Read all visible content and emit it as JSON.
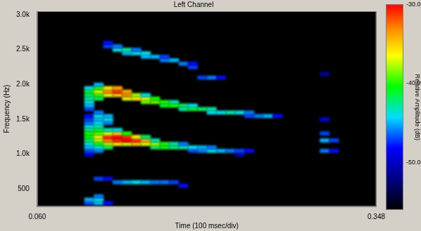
{
  "chart_data": {
    "type": "heatmap",
    "title": "Left Channel",
    "x_label": "Time (100 msec/div)",
    "y_label": "Frequency (Hz)",
    "xlim": [
      0.06,
      0.348
    ],
    "xticks": [
      {
        "value": 0.06,
        "label": "0.060"
      },
      {
        "value": 0.348,
        "label": "0.348"
      }
    ],
    "ylim": [
      250,
      3050
    ],
    "yticks": [
      500,
      {
        "value": 1000,
        "label": "1.0k"
      },
      {
        "value": 1500,
        "label": "1.5k"
      },
      {
        "value": 2000,
        "label": "2.0k"
      },
      {
        "value": 2500,
        "label": "2.5k"
      },
      {
        "value": 3000,
        "label": "3.0k"
      }
    ],
    "grid": false,
    "colorbar": {
      "label": "Relative Amplitude (dB)",
      "range": [
        -56,
        -30
      ],
      "ticks": [
        {
          "value": -50,
          "label": "-50.0"
        },
        {
          "value": -40,
          "label": "-40.0"
        },
        {
          "value": -30,
          "label": "-30.0"
        }
      ]
    },
    "cells": [
      [
        0.104,
        1000,
        -49
      ],
      [
        0.104,
        1050,
        -47
      ],
      [
        0.104,
        1100,
        -45
      ],
      [
        0.104,
        1150,
        -44
      ],
      [
        0.104,
        1200,
        -42
      ],
      [
        0.104,
        1250,
        -41
      ],
      [
        0.104,
        1300,
        -40
      ],
      [
        0.104,
        1350,
        -42
      ],
      [
        0.104,
        1400,
        -44
      ],
      [
        0.104,
        1450,
        -46
      ],
      [
        0.104,
        1500,
        -47
      ],
      [
        0.104,
        1550,
        -48
      ],
      [
        0.112,
        1050,
        -46
      ],
      [
        0.112,
        1100,
        -44
      ],
      [
        0.112,
        1150,
        -41
      ],
      [
        0.112,
        1200,
        -38
      ],
      [
        0.112,
        1250,
        -36
      ],
      [
        0.112,
        1300,
        -39
      ],
      [
        0.112,
        1350,
        -41
      ],
      [
        0.112,
        1400,
        -43
      ],
      [
        0.112,
        1450,
        -44
      ],
      [
        0.112,
        1500,
        -45
      ],
      [
        0.112,
        1550,
        -44
      ],
      [
        0.112,
        1600,
        -46
      ],
      [
        0.12,
        1100,
        -42
      ],
      [
        0.12,
        1150,
        -38
      ],
      [
        0.12,
        1200,
        -33
      ],
      [
        0.12,
        1250,
        -31
      ],
      [
        0.12,
        1300,
        -37
      ],
      [
        0.12,
        1350,
        -43
      ],
      [
        0.12,
        1450,
        -46
      ],
      [
        0.12,
        1500,
        -44
      ],
      [
        0.12,
        1550,
        -45
      ],
      [
        0.128,
        1150,
        -36
      ],
      [
        0.128,
        1200,
        -31
      ],
      [
        0.128,
        1250,
        -30
      ],
      [
        0.128,
        1300,
        -35
      ],
      [
        0.128,
        1350,
        -44
      ],
      [
        0.136,
        1150,
        -37
      ],
      [
        0.136,
        1200,
        -30
      ],
      [
        0.136,
        1250,
        -31
      ],
      [
        0.136,
        1300,
        -40
      ],
      [
        0.144,
        1150,
        -35
      ],
      [
        0.144,
        1200,
        -31
      ],
      [
        0.144,
        1250,
        -36
      ],
      [
        0.152,
        1150,
        -37
      ],
      [
        0.152,
        1200,
        -34
      ],
      [
        0.152,
        1250,
        -42
      ],
      [
        0.16,
        1100,
        -42
      ],
      [
        0.16,
        1150,
        -38
      ],
      [
        0.16,
        1200,
        -43
      ],
      [
        0.168,
        1100,
        -41
      ],
      [
        0.168,
        1150,
        -40
      ],
      [
        0.176,
        1100,
        -42
      ],
      [
        0.176,
        1150,
        -43
      ],
      [
        0.184,
        1100,
        -43
      ],
      [
        0.184,
        1150,
        -46
      ],
      [
        0.192,
        1050,
        -47
      ],
      [
        0.192,
        1100,
        -44
      ],
      [
        0.2,
        1050,
        -46
      ],
      [
        0.2,
        1100,
        -45
      ],
      [
        0.208,
        1050,
        -44
      ],
      [
        0.208,
        1100,
        -46
      ],
      [
        0.216,
        1050,
        -45
      ],
      [
        0.224,
        1050,
        -46
      ],
      [
        0.232,
        1000,
        -50
      ],
      [
        0.232,
        1050,
        -47
      ],
      [
        0.24,
        1050,
        -48
      ],
      [
        0.104,
        1650,
        -47
      ],
      [
        0.104,
        1700,
        -45
      ],
      [
        0.104,
        1750,
        -44
      ],
      [
        0.104,
        1800,
        -43
      ],
      [
        0.104,
        1850,
        -42
      ],
      [
        0.104,
        1900,
        -41
      ],
      [
        0.104,
        1950,
        -44
      ],
      [
        0.112,
        1800,
        -42
      ],
      [
        0.112,
        1850,
        -40
      ],
      [
        0.112,
        1900,
        -37
      ],
      [
        0.112,
        1950,
        -40
      ],
      [
        0.112,
        2000,
        -45
      ],
      [
        0.12,
        1850,
        -37
      ],
      [
        0.12,
        1900,
        -33
      ],
      [
        0.12,
        1950,
        -36
      ],
      [
        0.128,
        1850,
        -35
      ],
      [
        0.128,
        1900,
        -31
      ],
      [
        0.128,
        1950,
        -34
      ],
      [
        0.136,
        1800,
        -37
      ],
      [
        0.136,
        1850,
        -33
      ],
      [
        0.136,
        1900,
        -34
      ],
      [
        0.144,
        1800,
        -36
      ],
      [
        0.144,
        1850,
        -38
      ],
      [
        0.152,
        1750,
        -39
      ],
      [
        0.152,
        1800,
        -37
      ],
      [
        0.152,
        1850,
        -44
      ],
      [
        0.16,
        1750,
        -39
      ],
      [
        0.16,
        1800,
        -40
      ],
      [
        0.168,
        1700,
        -41
      ],
      [
        0.168,
        1750,
        -40
      ],
      [
        0.176,
        1700,
        -40
      ],
      [
        0.176,
        1750,
        -43
      ],
      [
        0.184,
        1650,
        -43
      ],
      [
        0.184,
        1700,
        -42
      ],
      [
        0.192,
        1650,
        -41
      ],
      [
        0.192,
        1700,
        -44
      ],
      [
        0.2,
        1650,
        -42
      ],
      [
        0.208,
        1600,
        -44
      ],
      [
        0.208,
        1650,
        -43
      ],
      [
        0.216,
        1600,
        -44
      ],
      [
        0.224,
        1600,
        -43
      ],
      [
        0.232,
        1600,
        -44
      ],
      [
        0.24,
        1550,
        -47
      ],
      [
        0.24,
        1600,
        -46
      ],
      [
        0.248,
        1550,
        -46
      ],
      [
        0.256,
        1550,
        -45
      ],
      [
        0.264,
        1550,
        -48
      ],
      [
        0.12,
        2550,
        -47
      ],
      [
        0.12,
        2600,
        -48
      ],
      [
        0.128,
        2500,
        -44
      ],
      [
        0.128,
        2550,
        -46
      ],
      [
        0.136,
        2450,
        -45
      ],
      [
        0.136,
        2500,
        -43
      ],
      [
        0.144,
        2450,
        -44
      ],
      [
        0.144,
        2500,
        -46
      ],
      [
        0.152,
        2400,
        -45
      ],
      [
        0.152,
        2450,
        -44
      ],
      [
        0.16,
        2400,
        -45
      ],
      [
        0.168,
        2350,
        -46
      ],
      [
        0.168,
        2400,
        -47
      ],
      [
        0.176,
        2350,
        -45
      ],
      [
        0.184,
        2300,
        -46
      ],
      [
        0.192,
        2250,
        -47
      ],
      [
        0.192,
        2300,
        -48
      ],
      [
        0.2,
        2100,
        -47
      ],
      [
        0.208,
        2100,
        -46
      ],
      [
        0.216,
        2100,
        -48
      ],
      [
        0.112,
        650,
        -47
      ],
      [
        0.12,
        650,
        -48
      ],
      [
        0.128,
        600,
        -46
      ],
      [
        0.136,
        600,
        -45
      ],
      [
        0.144,
        600,
        -44
      ],
      [
        0.152,
        600,
        -45
      ],
      [
        0.16,
        600,
        -46
      ],
      [
        0.168,
        600,
        -46
      ],
      [
        0.176,
        600,
        -47
      ],
      [
        0.184,
        550,
        -48
      ],
      [
        0.104,
        300,
        -47
      ],
      [
        0.104,
        350,
        -45
      ],
      [
        0.112,
        300,
        -45
      ],
      [
        0.112,
        350,
        -44
      ],
      [
        0.112,
        400,
        -46
      ],
      [
        0.12,
        300,
        -48
      ],
      [
        0.304,
        1050,
        -46
      ],
      [
        0.304,
        1200,
        -45
      ],
      [
        0.304,
        1300,
        -47
      ],
      [
        0.304,
        1500,
        -49
      ],
      [
        0.304,
        2150,
        -51
      ],
      [
        0.312,
        1050,
        -48
      ],
      [
        0.312,
        1200,
        -47
      ]
    ]
  }
}
